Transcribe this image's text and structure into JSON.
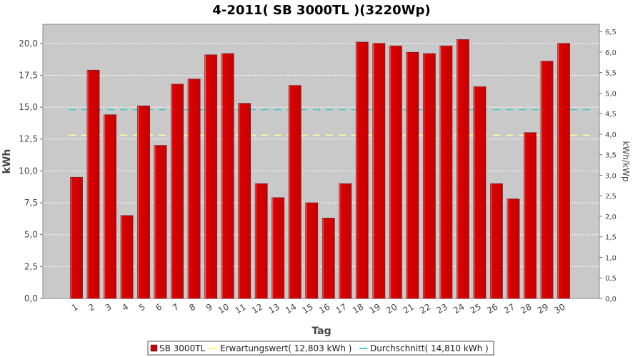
{
  "chart_data": {
    "type": "bar",
    "title": "4-2011( SB 3000TL )(3220Wp)",
    "xlabel": "Tag",
    "ylabel": "kWh",
    "y2label": "kWh/kWp",
    "ylim": [
      0,
      21.5
    ],
    "y2lim": [
      0,
      6.677
    ],
    "yticks": [
      "0,0",
      "2,5",
      "5,0",
      "7,5",
      "10,0",
      "12,5",
      "15,0",
      "17,5",
      "20,0"
    ],
    "y2ticks": [
      "0,0",
      "0,5",
      "1,0",
      "1,5",
      "2,0",
      "2,5",
      "3,0",
      "3,5",
      "4,0",
      "4,5",
      "5,0",
      "5,5",
      "6,0",
      "6,5"
    ],
    "grid": true,
    "legend_position": "bottom",
    "categories": [
      "1",
      "2",
      "3",
      "4",
      "5",
      "6",
      "7",
      "8",
      "9",
      "10",
      "11",
      "12",
      "13",
      "14",
      "15",
      "16",
      "17",
      "18",
      "19",
      "20",
      "21",
      "22",
      "23",
      "24",
      "25",
      "26",
      "27",
      "28",
      "29",
      "30"
    ],
    "series": [
      {
        "name": "SB 3000TL",
        "type": "bar",
        "color": "#dd0000",
        "values": [
          9.5,
          17.9,
          14.4,
          6.5,
          15.1,
          12.0,
          16.8,
          17.2,
          19.1,
          19.2,
          15.3,
          9.0,
          7.9,
          16.7,
          7.5,
          6.3,
          9.0,
          20.1,
          20.0,
          19.8,
          19.3,
          19.2,
          19.8,
          20.3,
          16.6,
          9.0,
          7.8,
          13.0,
          18.6,
          20.0
        ]
      },
      {
        "name": "Erwartungswert( 12,803 kWh )",
        "type": "dashed-line",
        "color": "#ffff99",
        "value": 12.803
      },
      {
        "name": "Durchschnitt( 14,810 kWh )",
        "type": "dashed-line",
        "color": "#33cccc",
        "value": 14.81
      }
    ]
  }
}
